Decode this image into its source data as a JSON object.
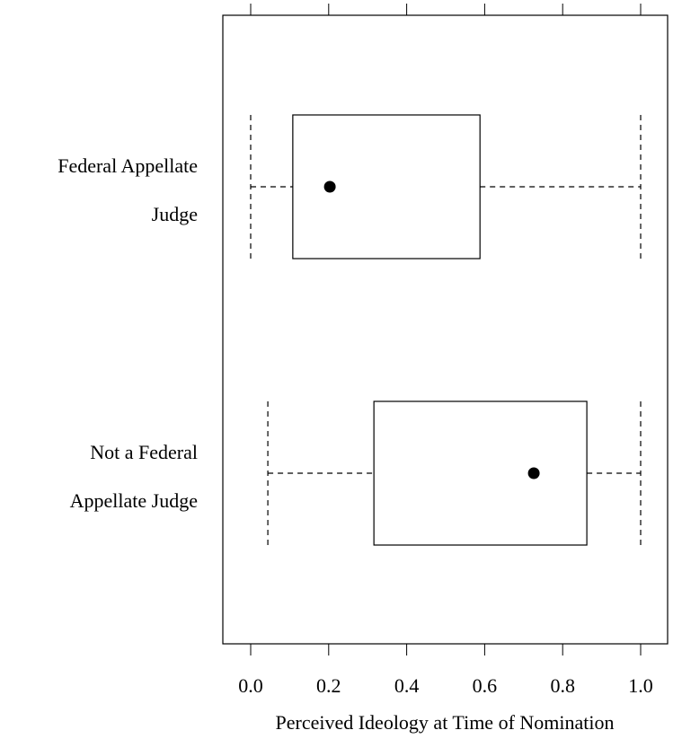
{
  "chart_data": {
    "type": "boxplot",
    "orientation": "horizontal",
    "xlabel": "Perceived Ideology at Time of Nomination",
    "categories": [
      [
        "Federal Appellate",
        "Judge"
      ],
      [
        "Not a Federal",
        "Appellate Judge"
      ]
    ],
    "boxes": [
      {
        "whislo": 0.0,
        "q1": 0.108,
        "med": 0.203,
        "q3": 0.588,
        "whishi": 1.0
      },
      {
        "whislo": 0.044,
        "q1": 0.316,
        "med": 0.726,
        "q3": 0.862,
        "whishi": 1.0
      }
    ],
    "xlim": [
      -0.0714,
      1.0691
    ],
    "xticks": [
      {
        "value": 0,
        "label": "0.0"
      },
      0.2,
      0.4,
      0.6,
      0.8,
      {
        "value": 1,
        "label": "1.0"
      }
    ]
  }
}
